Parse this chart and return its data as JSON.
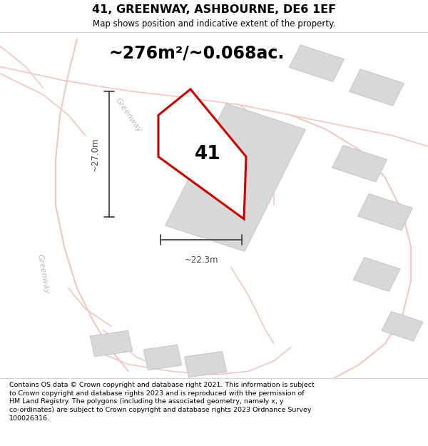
{
  "title": "41, GREENWAY, ASHBOURNE, DE6 1EF",
  "subtitle": "Map shows position and indicative extent of the property.",
  "area_label": "~276m²/~0.068ac.",
  "plot_number": "41",
  "dim_width": "~22.3m",
  "dim_height": "~27.0m",
  "street_name_upper": "Greenway",
  "street_name_lower": "Greenway",
  "map_bg": "#faf8f8",
  "copyright_text": "Contains OS data © Crown copyright and database right 2021. This information is subject\nto Crown copyright and database rights 2023 and is reproduced with the permission of\nHM Land Registry. The polygons (including the associated geometry, namely x, y\nco-ordinates) are subject to Crown copyright and database rights 2023 Ordnance Survey\n100026316.",
  "road_color": "#f0c8c0",
  "road_lw": 1.2,
  "building_color": "#d8d8d8",
  "building_edge": "#c4c4c4",
  "plot_color": "#ffffff",
  "plot_edge": "#cc0000",
  "plot_lw": 2.2,
  "dim_color": "#444444",
  "label_color": "#333333",
  "street_color": "#bbbbbb"
}
